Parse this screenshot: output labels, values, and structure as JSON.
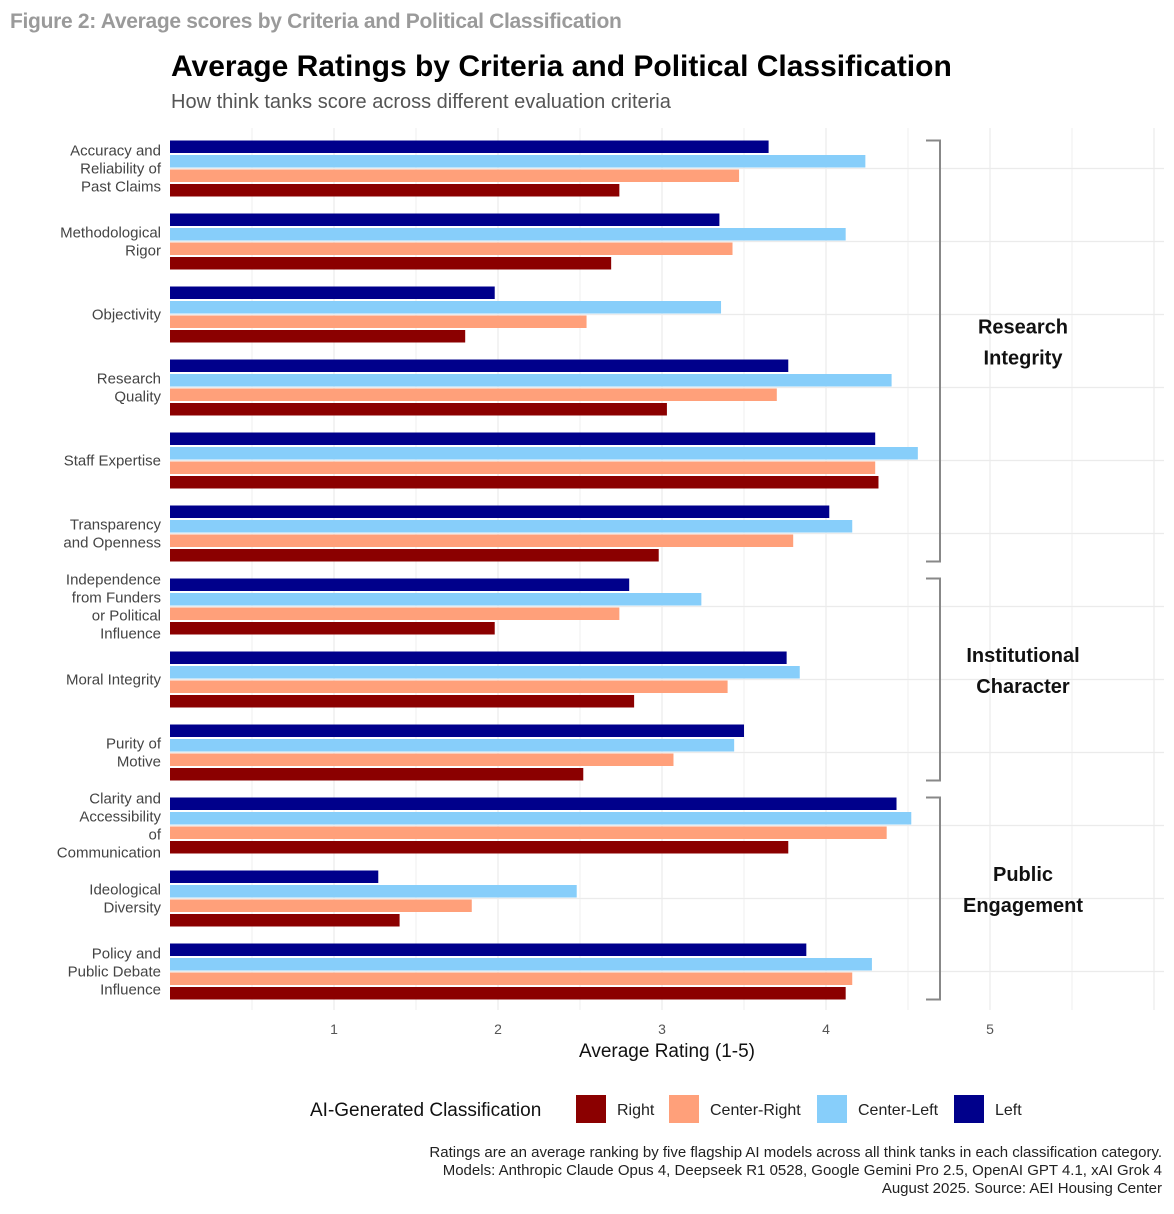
{
  "figure_label": "Figure 2: Average scores by Criteria and Political Classification",
  "caption": [
    "Ratings are an average ranking by five flagship AI models across all think tanks in each classification category.",
    "Models: Anthropic Claude Opus 4, Deepseek R1 0528, Google Gemini Pro 2.5, OpenAI GPT 4.1, xAI Grok 4",
    "August 2025. Source: AEI Housing Center"
  ],
  "chart_data": {
    "type": "bar",
    "orientation": "horizontal",
    "title": "Average Ratings by Criteria and Political Classification",
    "subtitle": "How think tanks score across different evaluation criteria",
    "xlabel": "Average Rating (1-5)",
    "xlim": [
      0,
      6
    ],
    "xticks": [
      1,
      2,
      3,
      4,
      5
    ],
    "grid": true,
    "legend_title": "AI-Generated Classification",
    "legend_position": "bottom",
    "categories": [
      [
        "Accuracy and",
        "Reliability of",
        "Past Claims"
      ],
      [
        "Methodological",
        "Rigor"
      ],
      [
        "Objectivity"
      ],
      [
        "Research",
        "Quality"
      ],
      [
        "Staff Expertise"
      ],
      [
        "Transparency",
        "and Openness"
      ],
      [
        "Independence",
        "from Funders",
        "or Political",
        "Influence"
      ],
      [
        "Moral Integrity"
      ],
      [
        "Purity of",
        "Motive"
      ],
      [
        "Clarity and",
        "Accessibility",
        "of",
        "Communication"
      ],
      [
        "Ideological",
        "Diversity"
      ],
      [
        "Policy and",
        "Public Debate",
        "Influence"
      ]
    ],
    "series": [
      {
        "name": "Left",
        "color": "#00008B",
        "values": [
          3.65,
          3.35,
          1.98,
          3.77,
          4.3,
          4.02,
          2.8,
          3.76,
          3.5,
          4.43,
          1.27,
          3.88
        ]
      },
      {
        "name": "Center-Left",
        "color": "#87CEFA",
        "values": [
          4.24,
          4.12,
          3.36,
          4.4,
          4.56,
          4.16,
          3.24,
          3.84,
          3.44,
          4.52,
          2.48,
          4.28
        ]
      },
      {
        "name": "Center-Right",
        "color": "#FFA07A",
        "values": [
          3.47,
          3.43,
          2.54,
          3.7,
          4.3,
          3.8,
          2.74,
          3.4,
          3.07,
          4.37,
          1.84,
          4.16
        ]
      },
      {
        "name": "Right",
        "color": "#8B0000",
        "values": [
          2.74,
          2.69,
          1.8,
          3.03,
          4.32,
          2.98,
          1.98,
          2.83,
          2.52,
          3.77,
          1.4,
          4.12
        ]
      }
    ],
    "legend_order": [
      "Right",
      "Center-Right",
      "Center-Left",
      "Left"
    ],
    "groups": [
      {
        "label": [
          "Research",
          "Integrity"
        ],
        "from": 0,
        "to": 5
      },
      {
        "label": [
          "Institutional",
          "Character"
        ],
        "from": 6,
        "to": 8
      },
      {
        "label": [
          "Public",
          "Engagement"
        ],
        "from": 9,
        "to": 11
      }
    ]
  }
}
